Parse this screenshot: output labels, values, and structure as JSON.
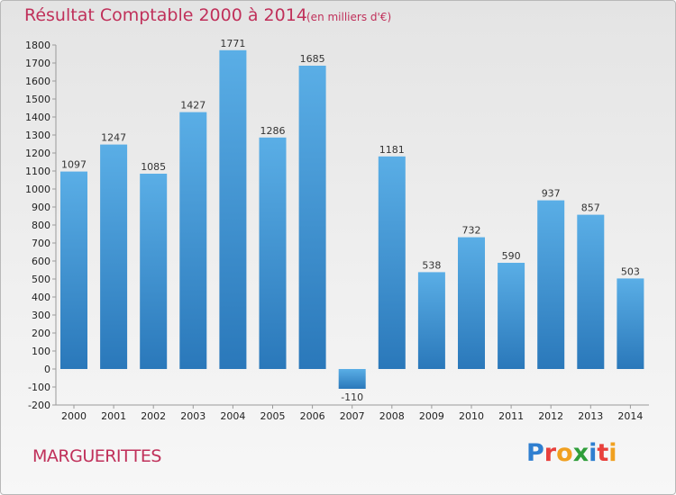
{
  "header": {
    "title": "Résultat Comptable 2000 à 2014",
    "unit": "(en milliers d'€)"
  },
  "footer": {
    "commune": "MARGUERITTES",
    "logo_letters": [
      "P",
      "r",
      "o",
      "x",
      "i",
      "t",
      "i"
    ],
    "logo_colors": [
      "#2f7fd0",
      "#e8403c",
      "#f0a020",
      "#2f9e3a",
      "#2f7fd0",
      "#e8403c",
      "#f0a020"
    ]
  },
  "colors": {
    "bar_light": "#5aaee6",
    "bar_dark": "#2a78ba",
    "title": "#c0305a"
  },
  "chart_data": {
    "type": "bar",
    "categories": [
      "2000",
      "2001",
      "2002",
      "2003",
      "2004",
      "2005",
      "2006",
      "2007",
      "2008",
      "2009",
      "2010",
      "2011",
      "2012",
      "2013",
      "2014"
    ],
    "values": [
      1097,
      1247,
      1085,
      1427,
      1771,
      1286,
      1685,
      -110,
      1181,
      538,
      732,
      590,
      937,
      857,
      503
    ],
    "value_labels": [
      "1097",
      "1247",
      "1085",
      "1427",
      "1771",
      "1286",
      "1685",
      "-110",
      "1181",
      "538",
      "732",
      "590",
      "937",
      "857",
      "503"
    ],
    "ylim": [
      -200,
      1800
    ],
    "yticks": [
      -200,
      -100,
      0,
      100,
      200,
      300,
      400,
      500,
      600,
      700,
      800,
      900,
      1000,
      1100,
      1200,
      1300,
      1400,
      1500,
      1600,
      1700,
      1800
    ],
    "grid": false,
    "title": "Résultat Comptable 2000 à 2014",
    "xlabel": "",
    "ylabel": ""
  }
}
